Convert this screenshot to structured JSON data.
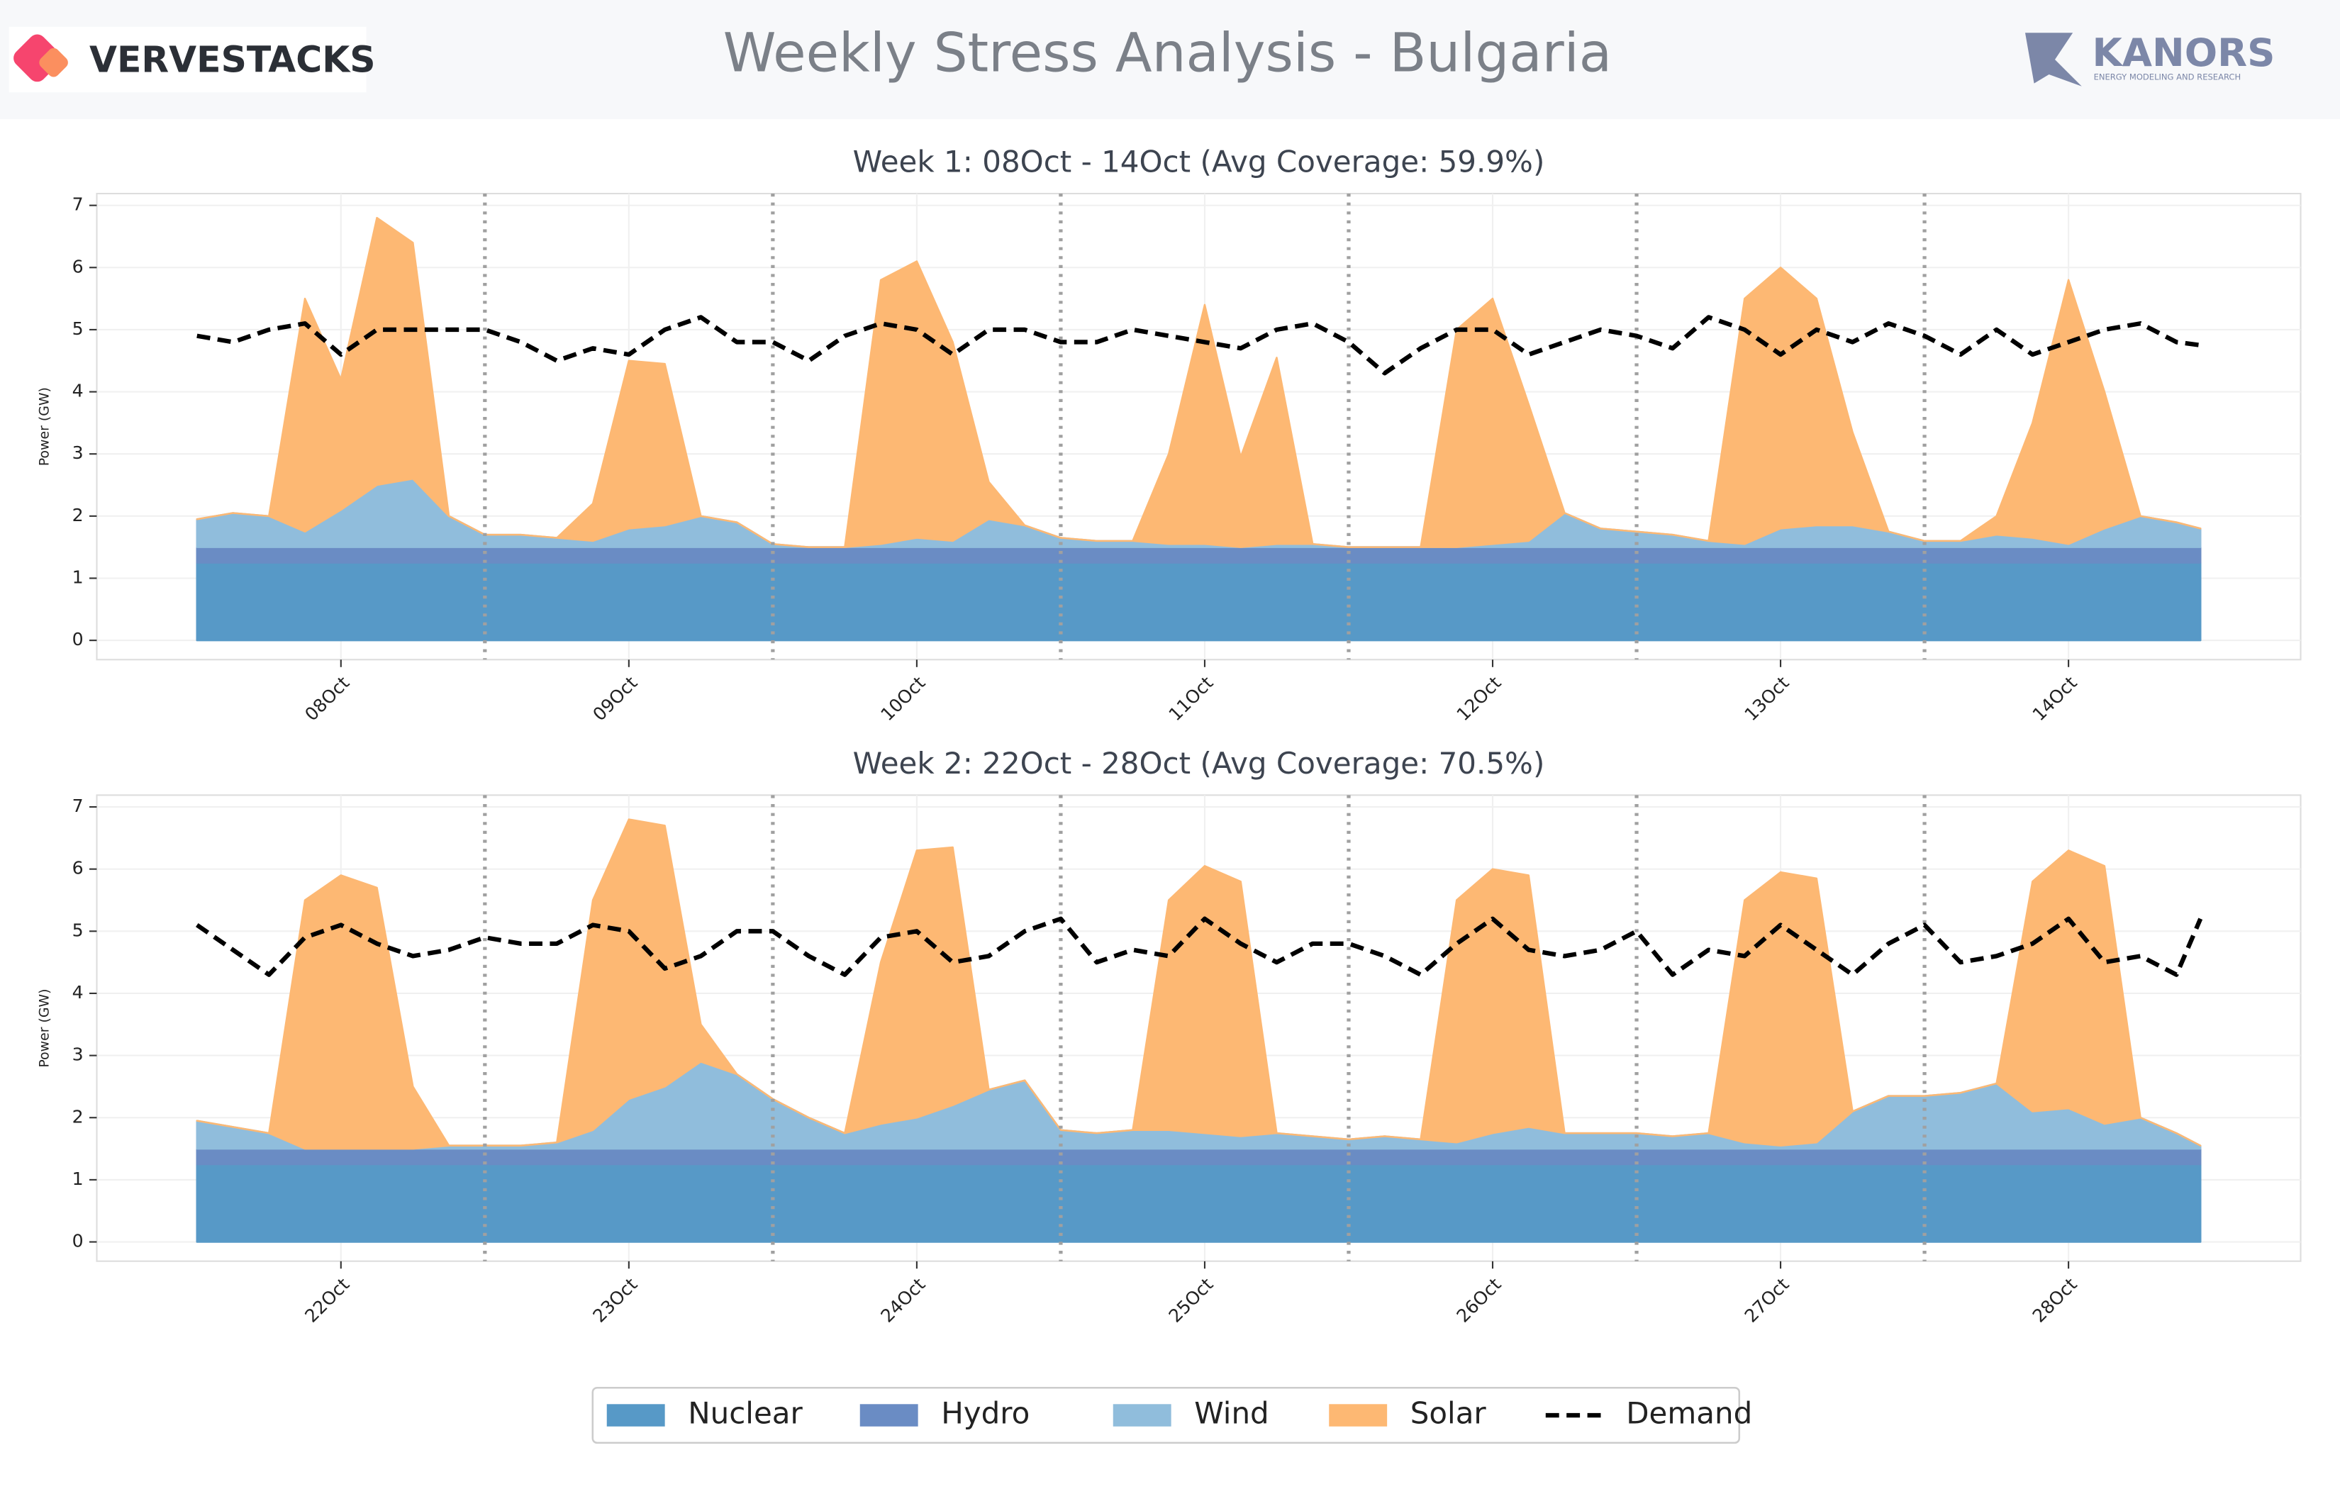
{
  "header": {
    "brand_left": "VERVESTACKS",
    "title": "Weekly Stress Analysis - Bulgaria",
    "brand_right": "KANORS",
    "brand_right_sub": "ENERGY MODELING AND RESEARCH"
  },
  "chart_data": [
    {
      "type": "area",
      "stacked": true,
      "title": "Week 1: 08Oct - 14Oct (Avg Coverage: 59.9%)",
      "ylabel": "Power (GW)",
      "x": [
        0,
        3,
        6,
        9,
        12,
        15,
        18,
        21,
        24,
        27,
        30,
        33,
        36,
        39,
        42,
        45,
        48,
        51,
        54,
        57,
        60,
        63,
        66,
        69,
        72,
        75,
        78,
        81,
        84,
        87,
        90,
        93,
        96,
        99,
        102,
        105,
        108,
        111,
        114,
        117,
        120,
        123,
        126,
        129,
        132,
        135,
        138,
        141,
        144,
        147,
        150,
        153,
        156,
        159,
        162,
        165,
        167
      ],
      "xlim": [
        -8.35,
        175.35
      ],
      "ylim": [
        -0.31,
        7.19
      ],
      "yticks": [
        0,
        1,
        2,
        3,
        4,
        5,
        6,
        7
      ],
      "xticks": [
        {
          "value": 12,
          "label": "08Oct"
        },
        {
          "value": 36,
          "label": "09Oct"
        },
        {
          "value": 60,
          "label": "10Oct"
        },
        {
          "value": 84,
          "label": "11Oct"
        },
        {
          "value": 108,
          "label": "12Oct"
        },
        {
          "value": 132,
          "label": "13Oct"
        },
        {
          "value": 156,
          "label": "14Oct"
        }
      ],
      "day_lines": [
        24,
        48,
        72,
        96,
        120,
        144
      ],
      "grid": true,
      "series": [
        {
          "name": "Nuclear",
          "color": "#5799c7",
          "values": [
            1.25,
            1.25,
            1.25,
            1.25,
            1.25,
            1.25,
            1.25,
            1.25,
            1.25,
            1.25,
            1.25,
            1.25,
            1.25,
            1.25,
            1.25,
            1.25,
            1.25,
            1.25,
            1.25,
            1.25,
            1.25,
            1.25,
            1.25,
            1.25,
            1.25,
            1.25,
            1.25,
            1.25,
            1.25,
            1.25,
            1.25,
            1.25,
            1.25,
            1.25,
            1.25,
            1.25,
            1.25,
            1.25,
            1.25,
            1.25,
            1.25,
            1.25,
            1.25,
            1.25,
            1.25,
            1.25,
            1.25,
            1.25,
            1.25,
            1.25,
            1.25,
            1.25,
            1.25,
            1.25,
            1.25,
            1.25,
            1.25
          ]
        },
        {
          "name": "Hydro",
          "color": "#6a8cc4",
          "values": [
            0.25,
            0.25,
            0.25,
            0.25,
            0.25,
            0.25,
            0.25,
            0.25,
            0.25,
            0.25,
            0.25,
            0.25,
            0.25,
            0.25,
            0.25,
            0.25,
            0.25,
            0.25,
            0.25,
            0.25,
            0.25,
            0.25,
            0.25,
            0.25,
            0.25,
            0.25,
            0.25,
            0.25,
            0.25,
            0.25,
            0.25,
            0.25,
            0.25,
            0.25,
            0.25,
            0.25,
            0.25,
            0.25,
            0.25,
            0.25,
            0.25,
            0.25,
            0.25,
            0.25,
            0.25,
            0.25,
            0.25,
            0.25,
            0.25,
            0.25,
            0.25,
            0.25,
            0.25,
            0.25,
            0.25,
            0.25,
            0.25
          ]
        },
        {
          "name": "Wind",
          "color": "#90bddc",
          "values": [
            0.45,
            0.55,
            0.5,
            0.25,
            0.6,
            1.0,
            1.1,
            0.5,
            0.2,
            0.2,
            0.15,
            0.1,
            0.3,
            0.35,
            0.5,
            0.4,
            0.05,
            0,
            0,
            0.05,
            0.15,
            0.1,
            0.45,
            0.35,
            0.15,
            0.1,
            0.1,
            0.05,
            0.05,
            0,
            0.05,
            0.05,
            0,
            0,
            0,
            0,
            0.05,
            0.1,
            0.55,
            0.3,
            0.25,
            0.2,
            0.1,
            0.05,
            0.3,
            0.35,
            0.35,
            0.25,
            0.1,
            0.1,
            0.2,
            0.15,
            0.05,
            0.3,
            0.5,
            0.4,
            0.3
          ]
        },
        {
          "name": "Solar",
          "color": "#fdb873",
          "values": [
            0,
            0,
            0,
            3.75,
            2.1,
            4.3,
            3.8,
            0,
            0,
            0,
            0,
            0.6,
            2.7,
            2.6,
            0,
            0,
            0,
            0,
            0,
            4.25,
            4.45,
            3.2,
            0.6,
            0,
            0,
            0,
            0,
            1.45,
            3.85,
            1.45,
            3.0,
            0,
            0,
            0,
            0,
            3.5,
            3.95,
            2.2,
            0,
            0,
            0,
            0,
            0,
            3.95,
            4.2,
            3.65,
            1.5,
            0,
            0,
            0,
            0.3,
            1.85,
            4.25,
            2.2,
            0,
            0,
            0
          ]
        },
        {
          "name": "Demand",
          "type": "line",
          "dashed": true,
          "color": "#000000",
          "values": [
            4.9,
            4.8,
            5.0,
            5.1,
            4.6,
            5.0,
            5.0,
            5.0,
            5.0,
            4.8,
            4.5,
            4.7,
            4.6,
            5.0,
            5.2,
            4.8,
            4.8,
            4.5,
            4.9,
            5.1,
            5.0,
            4.6,
            5.0,
            5.0,
            4.8,
            4.8,
            5.0,
            4.9,
            4.8,
            4.7,
            5.0,
            5.1,
            4.8,
            4.3,
            4.7,
            5.0,
            5.0,
            4.6,
            4.8,
            5.0,
            4.9,
            4.7,
            5.2,
            5.0,
            4.6,
            5.0,
            4.8,
            5.1,
            4.9,
            4.6,
            5.0,
            4.6,
            4.8,
            5.0,
            5.1,
            4.8,
            4.75
          ]
        }
      ]
    },
    {
      "type": "area",
      "stacked": true,
      "title": "Week 2: 22Oct - 28Oct (Avg Coverage: 70.5%)",
      "ylabel": "Power (GW)",
      "legend": "below",
      "x": [
        0,
        3,
        6,
        9,
        12,
        15,
        18,
        21,
        24,
        27,
        30,
        33,
        36,
        39,
        42,
        45,
        48,
        51,
        54,
        57,
        60,
        63,
        66,
        69,
        72,
        75,
        78,
        81,
        84,
        87,
        90,
        93,
        96,
        99,
        102,
        105,
        108,
        111,
        114,
        117,
        120,
        123,
        126,
        129,
        132,
        135,
        138,
        141,
        144,
        147,
        150,
        153,
        156,
        159,
        162,
        165,
        167
      ],
      "xlim": [
        -8.35,
        175.35
      ],
      "ylim": [
        -0.31,
        7.19
      ],
      "yticks": [
        0,
        1,
        2,
        3,
        4,
        5,
        6,
        7
      ],
      "xticks": [
        {
          "value": 12,
          "label": "22Oct"
        },
        {
          "value": 36,
          "label": "23Oct"
        },
        {
          "value": 60,
          "label": "24Oct"
        },
        {
          "value": 84,
          "label": "25Oct"
        },
        {
          "value": 108,
          "label": "26Oct"
        },
        {
          "value": 132,
          "label": "27Oct"
        },
        {
          "value": 156,
          "label": "28Oct"
        }
      ],
      "day_lines": [
        24,
        48,
        72,
        96,
        120,
        144
      ],
      "grid": true,
      "series": [
        {
          "name": "Nuclear",
          "color": "#5799c7",
          "values": [
            1.25,
            1.25,
            1.25,
            1.25,
            1.25,
            1.25,
            1.25,
            1.25,
            1.25,
            1.25,
            1.25,
            1.25,
            1.25,
            1.25,
            1.25,
            1.25,
            1.25,
            1.25,
            1.25,
            1.25,
            1.25,
            1.25,
            1.25,
            1.25,
            1.25,
            1.25,
            1.25,
            1.25,
            1.25,
            1.25,
            1.25,
            1.25,
            1.25,
            1.25,
            1.25,
            1.25,
            1.25,
            1.25,
            1.25,
            1.25,
            1.25,
            1.25,
            1.25,
            1.25,
            1.25,
            1.25,
            1.25,
            1.25,
            1.25,
            1.25,
            1.25,
            1.25,
            1.25,
            1.25,
            1.25,
            1.25,
            1.25
          ]
        },
        {
          "name": "Hydro",
          "color": "#6a8cc4",
          "values": [
            0.25,
            0.25,
            0.25,
            0.25,
            0.25,
            0.25,
            0.25,
            0.25,
            0.25,
            0.25,
            0.25,
            0.25,
            0.25,
            0.25,
            0.25,
            0.25,
            0.25,
            0.25,
            0.25,
            0.25,
            0.25,
            0.25,
            0.25,
            0.25,
            0.25,
            0.25,
            0.25,
            0.25,
            0.25,
            0.25,
            0.25,
            0.25,
            0.25,
            0.25,
            0.25,
            0.25,
            0.25,
            0.25,
            0.25,
            0.25,
            0.25,
            0.25,
            0.25,
            0.25,
            0.25,
            0.25,
            0.25,
            0.25,
            0.25,
            0.25,
            0.25,
            0.25,
            0.25,
            0.25,
            0.25,
            0.25,
            0.25
          ]
        },
        {
          "name": "Wind",
          "color": "#90bddc",
          "values": [
            0.45,
            0.35,
            0.25,
            0,
            0,
            0,
            0,
            0.05,
            0.05,
            0.05,
            0.1,
            0.3,
            0.8,
            1.0,
            1.4,
            1.2,
            0.8,
            0.5,
            0.25,
            0.4,
            0.5,
            0.7,
            0.95,
            1.1,
            0.3,
            0.25,
            0.3,
            0.3,
            0.25,
            0.2,
            0.25,
            0.2,
            0.15,
            0.2,
            0.15,
            0.1,
            0.25,
            0.35,
            0.25,
            0.25,
            0.25,
            0.2,
            0.25,
            0.1,
            0.05,
            0.1,
            0.6,
            0.85,
            0.85,
            0.9,
            1.05,
            0.6,
            0.65,
            0.4,
            0.5,
            0.25,
            0.05
          ]
        },
        {
          "name": "Solar",
          "color": "#fdb873",
          "values": [
            0,
            0,
            0,
            4.0,
            4.4,
            4.2,
            1.0,
            0,
            0,
            0,
            0,
            3.7,
            4.5,
            4.2,
            0.6,
            0,
            0,
            0,
            0,
            2.6,
            4.3,
            4.15,
            0,
            0,
            0,
            0,
            0,
            3.7,
            4.3,
            4.1,
            0,
            0,
            0,
            0,
            0,
            3.9,
            4.25,
            4.05,
            0,
            0,
            0,
            0,
            0,
            3.9,
            4.4,
            4.25,
            0,
            0,
            0,
            0,
            0,
            3.7,
            4.15,
            4.15,
            0,
            0,
            0
          ]
        },
        {
          "name": "Demand",
          "type": "line",
          "dashed": true,
          "color": "#000000",
          "values": [
            5.1,
            4.7,
            4.3,
            4.9,
            5.1,
            4.8,
            4.6,
            4.7,
            4.9,
            4.8,
            4.8,
            5.1,
            5.0,
            4.4,
            4.6,
            5.0,
            5.0,
            4.6,
            4.3,
            4.9,
            5.0,
            4.5,
            4.6,
            5.0,
            5.2,
            4.5,
            4.7,
            4.6,
            5.2,
            4.8,
            4.5,
            4.8,
            4.8,
            4.6,
            4.3,
            4.8,
            5.2,
            4.7,
            4.6,
            4.7,
            5.0,
            4.3,
            4.7,
            4.6,
            5.1,
            4.7,
            4.3,
            4.8,
            5.1,
            4.5,
            4.6,
            4.8,
            5.2,
            4.5,
            4.6,
            4.3,
            5.2
          ]
        }
      ]
    }
  ]
}
